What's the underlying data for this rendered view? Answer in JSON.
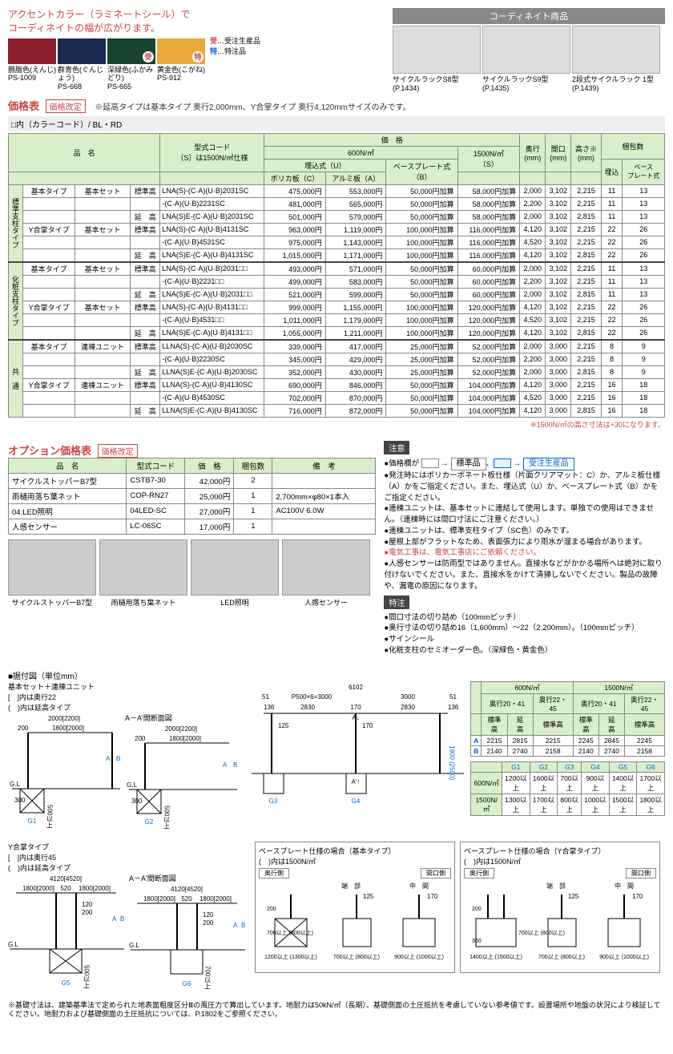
{
  "accent": {
    "title_l1": "アクセントカラー（ラミネートシール）で",
    "title_l2": "コーディネイトの幅が広がります。",
    "legend_ju": "受",
    "legend_ju_txt": "…受注生産品",
    "legend_to": "特",
    "legend_to_txt": "…特注品",
    "swatches": [
      {
        "name": "臙脂色(えんじ)",
        "code": "PS-1009",
        "hex": "#8b1f2d",
        "badge": ""
      },
      {
        "name": "群青色(ぐんじょう)",
        "code": "PS-668",
        "hex": "#1d2b52",
        "badge": ""
      },
      {
        "name": "深緑色(ふかみどり)",
        "code": "PS-665",
        "hex": "#18432f",
        "badge": "受"
      },
      {
        "name": "黄金色(こがね)",
        "code": "PS-912",
        "hex": "#e8a93a",
        "badge": "特"
      }
    ]
  },
  "coord": {
    "header": "コーディネイト商品",
    "items": [
      {
        "name": "サイクルラックS8型",
        "page": "(P.1434)"
      },
      {
        "name": "サイクルラックS9型",
        "page": "(P.1435)"
      },
      {
        "name": "2段式サイクルラック 1型",
        "page": "(P.1439)"
      }
    ]
  },
  "price_section": {
    "title": "価格表",
    "rev": "価格改定",
    "note": "※延高タイプは基本タイプ 奥行2,000mm、Y合掌タイプ 奥行4,120mmサイズのみです。",
    "subhead": "□内（カラーコード）/ BL・RD",
    "headers": {
      "name": "品　名",
      "model": "型式コード\n（S）は1500N/㎡仕様",
      "price": "価　格",
      "p600": "600N/㎡",
      "p1500": "1500N/㎡\n（S）",
      "ume": "埋込式（U）",
      "base": "ベースプレート式\n（B）",
      "poly": "ポリカ板（C）",
      "alum": "アルミ板（A）",
      "depth": "奥行\n(mm)",
      "width": "間口\n(mm)",
      "height": "高さ※\n(mm)",
      "pack": "梱包数",
      "pack_u": "埋込",
      "pack_b": "ベース\nプレート式"
    },
    "groups": [
      {
        "glabel": "標準支柱タイプ",
        "rows": [
          {
            "a": "基本タイプ",
            "b": "基本セット",
            "c": "標準高",
            "m": "LNA(S)-(C·A)(U·B)2031SC",
            "pc": "475,000円",
            "pa": "553,000円",
            "pb": "50,000円加算",
            "ps": "58,000円加算",
            "d": "2,000",
            "w": "3,102",
            "h": "2,215",
            "pu": "11",
            "pp": "13"
          },
          {
            "a": "",
            "b": "",
            "c": "",
            "m": "-(C·A)(U·B)2231SC",
            "pc": "481,000円",
            "pa": "565,000円",
            "pb": "50,000円加算",
            "ps": "58,000円加算",
            "d": "2,200",
            "w": "3,102",
            "h": "2,215",
            "pu": "11",
            "pp": "13"
          },
          {
            "a": "",
            "b": "",
            "c": "延　高",
            "m": "LNA(S)E-(C·A)(U·B)2031SC",
            "pc": "501,000円",
            "pa": "579,000円",
            "pb": "50,000円加算",
            "ps": "58,000円加算",
            "d": "2,000",
            "w": "3,102",
            "h": "2,815",
            "pu": "11",
            "pp": "13"
          },
          {
            "a": "Y合掌タイプ",
            "b": "基本セット",
            "c": "標準高",
            "m": "LNA(S)-(C·A)(U·B)4131SC",
            "pc": "963,000円",
            "pa": "1,119,000円",
            "pb": "100,000円加算",
            "ps": "116,000円加算",
            "d": "4,120",
            "w": "3,102",
            "h": "2,215",
            "pu": "22",
            "pp": "26"
          },
          {
            "a": "",
            "b": "",
            "c": "",
            "m": "-(C·A)(U·B)4531SC",
            "pc": "975,000円",
            "pa": "1,143,000円",
            "pb": "100,000円加算",
            "ps": "116,000円加算",
            "d": "4,520",
            "w": "3,102",
            "h": "2,215",
            "pu": "22",
            "pp": "26"
          },
          {
            "a": "",
            "b": "",
            "c": "延　高",
            "m": "LNA(S)E-(C·A)(U·B)4131SC",
            "pc": "1,015,000円",
            "pa": "1,171,000円",
            "pb": "100,000円加算",
            "ps": "116,000円加算",
            "d": "4,120",
            "w": "3,102",
            "h": "2,815",
            "pu": "22",
            "pp": "26"
          }
        ]
      },
      {
        "glabel": "化粧支柱タイプ",
        "rows": [
          {
            "a": "基本タイプ",
            "b": "基本セット",
            "c": "標準高",
            "m": "LNA(S)-(C·A)(U·B)2031□□",
            "pc": "493,000円",
            "pa": "571,000円",
            "pb": "50,000円加算",
            "ps": "60,000円加算",
            "d": "2,000",
            "w": "3,102",
            "h": "2,215",
            "pu": "11",
            "pp": "13"
          },
          {
            "a": "",
            "b": "",
            "c": "",
            "m": "-(C·A)(U·B)2231□□",
            "pc": "499,000円",
            "pa": "583,000円",
            "pb": "50,000円加算",
            "ps": "60,000円加算",
            "d": "2,200",
            "w": "3,102",
            "h": "2,215",
            "pu": "11",
            "pp": "13"
          },
          {
            "a": "",
            "b": "",
            "c": "延　高",
            "m": "LNA(S)E-(C·A)(U·B)2031□□",
            "pc": "521,000円",
            "pa": "599,000円",
            "pb": "50,000円加算",
            "ps": "60,000円加算",
            "d": "2,000",
            "w": "3,102",
            "h": "2,815",
            "pu": "11",
            "pp": "13"
          },
          {
            "a": "Y合掌タイプ",
            "b": "基本セット",
            "c": "標準高",
            "m": "LNA(S)-(C·A)(U·B)4131□□",
            "pc": "999,000円",
            "pa": "1,155,000円",
            "pb": "100,000円加算",
            "ps": "120,000円加算",
            "d": "4,120",
            "w": "3,102",
            "h": "2,215",
            "pu": "22",
            "pp": "26"
          },
          {
            "a": "",
            "b": "",
            "c": "",
            "m": "-(C·A)(U·B)4531□□",
            "pc": "1,011,000円",
            "pa": "1,179,000円",
            "pb": "100,000円加算",
            "ps": "120,000円加算",
            "d": "4,520",
            "w": "3,102",
            "h": "2,215",
            "pu": "22",
            "pp": "26"
          },
          {
            "a": "",
            "b": "",
            "c": "延　高",
            "m": "LNA(S)E-(C·A)(U·B)4131□□",
            "pc": "1,055,000円",
            "pa": "1,211,000円",
            "pb": "100,000円加算",
            "ps": "120,000円加算",
            "d": "4,120",
            "w": "3,102",
            "h": "2,815",
            "pu": "22",
            "pp": "26"
          }
        ]
      },
      {
        "glabel": "共　通",
        "rows": [
          {
            "a": "基本タイプ",
            "b": "連棟ユニット",
            "c": "標準高",
            "m": "LLNA(S)-(C·A)(U·B)2030SC",
            "pc": "339,000円",
            "pa": "417,000円",
            "pb": "25,000円加算",
            "ps": "52,000円加算",
            "d": "2,000",
            "w": "3,000",
            "h": "2,215",
            "pu": "8",
            "pp": "9"
          },
          {
            "a": "",
            "b": "",
            "c": "",
            "m": "-(C·A)(U·B)2230SC",
            "pc": "345,000円",
            "pa": "429,000円",
            "pb": "25,000円加算",
            "ps": "52,000円加算",
            "d": "2,200",
            "w": "3,000",
            "h": "2,215",
            "pu": "8",
            "pp": "9"
          },
          {
            "a": "",
            "b": "",
            "c": "延　高",
            "m": "LLNA(S)E-(C·A)(U·B)2030SC",
            "pc": "352,000円",
            "pa": "430,000円",
            "pb": "25,000円加算",
            "ps": "52,000円加算",
            "d": "2,000",
            "w": "3,000",
            "h": "2,815",
            "pu": "8",
            "pp": "9"
          },
          {
            "a": "Y合掌タイプ",
            "b": "連棟ユニット",
            "c": "標準高",
            "m": "LLNA(S)-(C·A)(U·B)4130SC",
            "pc": "690,000円",
            "pa": "846,000円",
            "pb": "50,000円加算",
            "ps": "104,000円加算",
            "d": "4,120",
            "w": "3,000",
            "h": "2,215",
            "pu": "16",
            "pp": "18"
          },
          {
            "a": "",
            "b": "",
            "c": "",
            "m": "-(C·A)(U·B)4530SC",
            "pc": "702,000円",
            "pa": "870,000円",
            "pb": "50,000円加算",
            "ps": "104,000円加算",
            "d": "4,520",
            "w": "3,000",
            "h": "2,215",
            "pu": "16",
            "pp": "18"
          },
          {
            "a": "",
            "b": "",
            "c": "延　高",
            "m": "LLNA(S)E-(C·A)(U·B)4130SC",
            "pc": "716,000円",
            "pa": "872,000円",
            "pb": "50,000円加算",
            "ps": "104,000円加算",
            "d": "4,120",
            "w": "3,000",
            "h": "2,815",
            "pu": "16",
            "pp": "18"
          }
        ]
      }
    ],
    "footnote": "※1500N/㎡の高さ寸法は+30になります。"
  },
  "option": {
    "title": "オプション価格表",
    "rev": "価格改定",
    "headers": {
      "name": "品　名",
      "model": "型式コード",
      "price": "価　格",
      "pack": "梱包数",
      "note": "備　考"
    },
    "rows": [
      {
        "n": "サイクルストッパーB7型",
        "m": "CSTB7-30",
        "p": "42,000円",
        "k": "2",
        "b": ""
      },
      {
        "n": "雨樋用落ち葉ネット",
        "m": "COP-RN27",
        "p": "25,000円",
        "k": "1",
        "b": "2,700mm×φ80×1本入"
      },
      {
        "n": "04:LED照明",
        "m": "04LED-SC",
        "p": "27,000円",
        "k": "1",
        "b": "AC100V 6.0W"
      },
      {
        "n": "人感センサー",
        "m": "LC-06SC",
        "p": "17,000円",
        "k": "1",
        "b": ""
      }
    ],
    "thumbs": [
      "サイクルストッパーB7型",
      "雨樋用落ち葉ネット",
      "LED照明",
      "人感センサー"
    ]
  },
  "notes": {
    "chui": "注意",
    "arrow_std": "標準品",
    "arrow_ju": "受注生産品",
    "line0": "●価格欄が　　　→　　　、　　　→",
    "lines": [
      "●発注時にはポリカーボネート板仕様（片面クリアマット：C）か、アルミ板仕様（A）かをご指定ください。また、埋込式（U）か、ベースプレート式（B）かをご指定ください。",
      "●連棟ユニットは、基本セットに連結して使用します。単独での使用はできません。（連棟時には間口寸法にご注意ください。）",
      "●連棟ユニットは、標準支柱タイプ（SC色）のみです。",
      "●屋根上部がフラットなため、表面張力により雨水が溜まる場合があります。"
    ],
    "red_line": "●電気工事は、電気工事店にご依頼ください。",
    "last": "●人感センサーは防雨型ではありません。直接水などがかかる場所へは絶対に取り付けないでください。また、直接水をかけて清掃しないでください。製品の故障や、漏電の原因になります。",
    "tokuchu": "特注",
    "tokuchu_lines": [
      "●間口寸法の切り詰め（100mmピッチ）",
      "●奥行寸法の切り詰め16（1,600mm）～22（2,200mm）。（100mmピッチ）",
      "●サインシール",
      "●化粧支柱のセミオーダー色。（深緑色・黄金色）"
    ]
  },
  "diagram": {
    "title": "■据付図（単位mm）",
    "labels": {
      "basic": "基本セット＋連棟ユニット",
      "bracket1": "[　]内は奥行22",
      "bracket2": "(　)内は延高タイプ",
      "aa": "A－A'間断面図",
      "y": "Y合掌タイプ",
      "ybr1": "[　]内は奥行45",
      "ybr2": "(　)内は延高タイプ",
      "bp_basic": "ベースプレート仕様の場合（基本タイプ）",
      "bp_y": "ベースプレート仕様の場合（Y合掌タイプ）",
      "bp_inner": "(　)内は1500N/㎡",
      "side_d": "奥行側",
      "side_w": "間口側",
      "end": "端　部",
      "mid": "中　間",
      "gl": "G.L"
    },
    "dims": {
      "w1": "2000[2200]",
      "w1i": "1800[2000]",
      "off": "200",
      "h_base": "300",
      "h_pile": "500以上",
      "h_pile2": "700以上",
      "top_total": "6102",
      "top_seg": "P500×6=3000",
      "top_51": "51",
      "top_3000": "3000",
      "top_136": "136",
      "top_2830": "2830",
      "top_170": "170",
      "hA": "1900\n(2500)",
      "ins": "125",
      "y_total": "4120[4520]",
      "y_seg": "1800[2000]",
      "y_mid": "520",
      "y_120": "120",
      "y_200": "200",
      "bp_h": "700以上\n(800以上)",
      "bp_h2": "200",
      "bp_300": "300",
      "bp_125": "125",
      "bp_170": "170",
      "bp_w1": "1200以上\n(1300以上)",
      "bp_w2": "700以上\n(800以上)",
      "bp_w3": "900以上\n(1000以上)",
      "bp_w1y": "1400以上\n(1500以上)"
    },
    "gtags": [
      "G1",
      "G2",
      "G3",
      "G4",
      "G5",
      "G6"
    ],
    "dimtable": {
      "h600": "600N/㎡",
      "h1500": "1500N/㎡",
      "cols": [
        "奥行20・41",
        "奥行22・45",
        "奥行20・41",
        "奥行22・45"
      ],
      "sub": [
        "標準高",
        "延　高",
        "標準高",
        "標準高",
        "延　高",
        "標準高"
      ],
      "A": [
        "2215",
        "2815",
        "2215",
        "2245",
        "2845",
        "2245"
      ],
      "B": [
        "2140",
        "2740",
        "2158",
        "2140",
        "2740",
        "2158"
      ]
    },
    "gtable": {
      "h": [
        "G1",
        "G2",
        "G3",
        "G4",
        "G5",
        "G6"
      ],
      "r600": [
        "1200以上",
        "1600以上",
        "700以上",
        "900以上",
        "1400以上",
        "1700以上"
      ],
      "r1500": [
        "1300以上",
        "1700以上",
        "800以上",
        "1000以上",
        "1500以上",
        "1800以上"
      ]
    },
    "foot": "※基礎寸法は、建築基準法で定められた地表面粗度区分Ⅲの風圧力で算出しています。地耐力は50kN/㎡（長期）、基礎側面の土圧抵抗を考慮していない参考値です。設置場所や地盤の状況により検証してください。地耐力および基礎側面の土圧抵抗については、P.1802をご参照ください。"
  }
}
